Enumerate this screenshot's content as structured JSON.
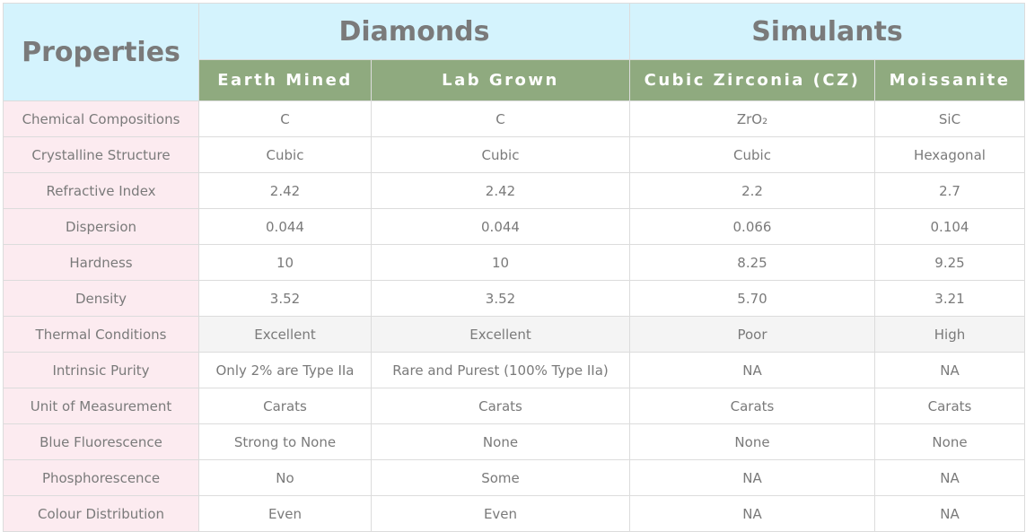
{
  "header": {
    "properties": "Properties",
    "groups": [
      "Diamonds",
      "Simulants"
    ],
    "columns": [
      "Earth Mined",
      "Lab Grown",
      "Cubic Zirconia (CZ)",
      "Moissanite"
    ]
  },
  "rows": [
    {
      "label": "Chemical Compositions",
      "values": [
        "C",
        "C",
        "ZrO₂",
        "SiC"
      ]
    },
    {
      "label": "Crystalline Structure",
      "values": [
        "Cubic",
        "Cubic",
        "Cubic",
        "Hexagonal"
      ]
    },
    {
      "label": "Refractive Index",
      "values": [
        "2.42",
        "2.42",
        "2.2",
        "2.7"
      ]
    },
    {
      "label": "Dispersion",
      "values": [
        "0.044",
        "0.044",
        "0.066",
        "0.104"
      ]
    },
    {
      "label": "Hardness",
      "values": [
        "10",
        "10",
        "8.25",
        "9.25"
      ]
    },
    {
      "label": "Density",
      "values": [
        "3.52",
        "3.52",
        "5.70",
        "3.21"
      ]
    },
    {
      "label": "Thermal Conditions",
      "values": [
        "Excellent",
        "Excellent",
        "Poor",
        "High"
      ]
    },
    {
      "label": "Intrinsic Purity",
      "values": [
        "Only 2% are Type IIa",
        "Rare and Purest (100% Type IIa)",
        "NA",
        "NA"
      ]
    },
    {
      "label": "Unit of Measurement",
      "values": [
        "Carats",
        "Carats",
        "Carats",
        "Carats"
      ]
    },
    {
      "label": "Blue Fluorescence",
      "values": [
        "Strong to None",
        "None",
        "None",
        "None"
      ]
    },
    {
      "label": "Phosphorescence",
      "values": [
        "No",
        "Some",
        "NA",
        "NA"
      ]
    },
    {
      "label": "Colour Distribution",
      "values": [
        "Even",
        "Even",
        "NA",
        "NA"
      ]
    }
  ],
  "colors": {
    "header_bg": "#d4f3fd",
    "subheader_bg": "#8faa7f",
    "label_bg": "#fcebf0",
    "highlight_row_bg": "#f4f4f4"
  }
}
